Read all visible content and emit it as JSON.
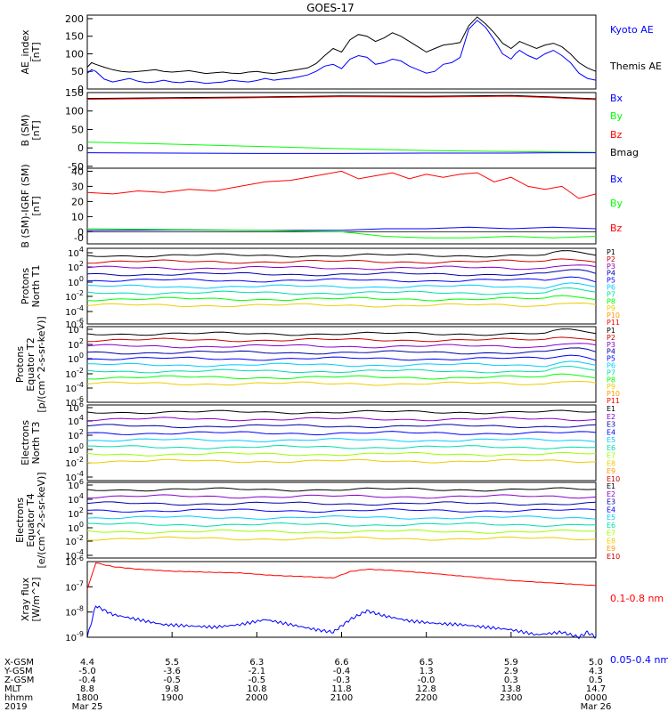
{
  "title": "GOES-17",
  "colors": {
    "black": "#000000",
    "blue": "#0000ff",
    "green": "#00ff00",
    "red": "#ff0000",
    "darkred": "#cc0000",
    "purple": "#8800cc",
    "navy": "#0000aa",
    "cyan": "#00ccff",
    "teal": "#00ddaa",
    "yellow": "#eecc00",
    "orange": "#ff9900",
    "lime": "#99ff00"
  },
  "chart_data": [
    {
      "type": "line",
      "panel": "ae",
      "ylabel": "AE_index [nT]",
      "ylim": [
        0,
        210
      ],
      "yticks": [
        "0",
        "50",
        "100",
        "150",
        "200"
      ],
      "legend": [
        {
          "label": "Kyoto AE",
          "color": "blue"
        },
        {
          "label": "Themis AE",
          "color": "black"
        }
      ],
      "series": [
        {
          "name": "Themis AE",
          "color": "black",
          "x": [
            0,
            0.05,
            0.1,
            0.2,
            0.3,
            0.4,
            0.5,
            0.6,
            0.7,
            0.8,
            0.9,
            1.0,
            1.1,
            1.2,
            1.3,
            1.4,
            1.5,
            1.6,
            1.7,
            1.8,
            1.9,
            2.0,
            2.1,
            2.2,
            2.3,
            2.4,
            2.5,
            2.6,
            2.7,
            2.8,
            2.9,
            3.0,
            3.1,
            3.2,
            3.3,
            3.4,
            3.5,
            3.6,
            3.7,
            3.8,
            3.9,
            4.0,
            4.1,
            4.2,
            4.3,
            4.4,
            4.5,
            4.6,
            4.7,
            4.8,
            4.9,
            5.0,
            5.05,
            5.1,
            5.2,
            5.3,
            5.4,
            5.5,
            5.6,
            5.7,
            5.8,
            5.9,
            6.0
          ],
          "y": [
            62,
            75,
            70,
            62,
            55,
            50,
            48,
            50,
            52,
            55,
            50,
            48,
            50,
            52,
            48,
            44,
            46,
            48,
            45,
            44,
            48,
            50,
            46,
            44,
            48,
            52,
            56,
            60,
            72,
            95,
            115,
            105,
            140,
            155,
            150,
            135,
            145,
            160,
            150,
            135,
            120,
            105,
            115,
            125,
            128,
            132,
            180,
            205,
            185,
            160,
            130,
            115,
            125,
            135,
            125,
            115,
            125,
            130,
            120,
            100,
            75,
            60,
            50
          ]
        },
        {
          "name": "Kyoto AE",
          "color": "blue",
          "x": [
            0,
            0.05,
            0.1,
            0.2,
            0.3,
            0.4,
            0.5,
            0.6,
            0.7,
            0.8,
            0.9,
            1.0,
            1.1,
            1.2,
            1.3,
            1.4,
            1.5,
            1.6,
            1.7,
            1.8,
            1.9,
            2.0,
            2.1,
            2.2,
            2.3,
            2.4,
            2.5,
            2.6,
            2.7,
            2.8,
            2.9,
            3.0,
            3.1,
            3.2,
            3.3,
            3.4,
            3.5,
            3.6,
            3.7,
            3.8,
            3.9,
            4.0,
            4.1,
            4.2,
            4.3,
            4.4,
            4.5,
            4.6,
            4.7,
            4.8,
            4.9,
            5.0,
            5.05,
            5.1,
            5.2,
            5.3,
            5.4,
            5.5,
            5.6,
            5.7,
            5.8,
            5.9,
            6.0
          ],
          "y": [
            45,
            55,
            50,
            28,
            20,
            25,
            30,
            22,
            18,
            20,
            25,
            20,
            18,
            22,
            20,
            16,
            18,
            20,
            25,
            22,
            20,
            24,
            30,
            25,
            28,
            30,
            35,
            40,
            50,
            65,
            70,
            58,
            85,
            95,
            90,
            70,
            75,
            85,
            80,
            65,
            55,
            45,
            50,
            70,
            75,
            90,
            170,
            195,
            175,
            140,
            100,
            85,
            100,
            110,
            95,
            85,
            100,
            110,
            95,
            75,
            45,
            30,
            25
          ]
        }
      ]
    },
    {
      "type": "line",
      "panel": "b_sm",
      "ylabel": "B (SM) [nT]",
      "ylim": [
        -55,
        150
      ],
      "yticks": [
        "-50",
        "0",
        "50",
        "100",
        "150"
      ],
      "legend": [
        {
          "label": "Bx",
          "color": "blue"
        },
        {
          "label": "By",
          "color": "green"
        },
        {
          "label": "Bz",
          "color": "red"
        },
        {
          "label": "Bmag",
          "color": "black"
        }
      ],
      "series": [
        {
          "name": "Bmag",
          "color": "black",
          "x": [
            0,
            1,
            2,
            3,
            4,
            5,
            5.5,
            6
          ],
          "y": [
            134,
            136,
            138,
            141,
            140,
            142,
            138,
            133
          ]
        },
        {
          "name": "Bz",
          "color": "red",
          "x": [
            0,
            1,
            2,
            3,
            4,
            5,
            5.5,
            6
          ],
          "y": [
            132,
            134,
            136,
            139,
            138,
            140,
            136,
            131
          ]
        },
        {
          "name": "By",
          "color": "green",
          "x": [
            0,
            1,
            2,
            3,
            4,
            5,
            5.5,
            6
          ],
          "y": [
            16,
            10,
            4,
            -2,
            -7,
            -10,
            -11,
            -12
          ]
        },
        {
          "name": "Bx",
          "color": "blue",
          "x": [
            0,
            1,
            2,
            3,
            4,
            5,
            5.5,
            6
          ],
          "y": [
            -13,
            -14,
            -15,
            -15,
            -14,
            -14,
            -13,
            -13
          ]
        }
      ]
    },
    {
      "type": "line",
      "panel": "b_igrf",
      "ylabel": "B (SM)-IGRF (SM) [nT]",
      "ylim": [
        -8,
        42
      ],
      "yticks": [
        "-0",
        "0",
        "10",
        "20",
        "30",
        "40"
      ],
      "legend": [
        {
          "label": "Bx",
          "color": "blue"
        },
        {
          "label": "By",
          "color": "green"
        },
        {
          "label": "Bz",
          "color": "red"
        }
      ],
      "series": [
        {
          "name": "Bz",
          "color": "red",
          "x": [
            0,
            0.3,
            0.6,
            0.9,
            1.2,
            1.5,
            1.8,
            2.1,
            2.4,
            2.7,
            3.0,
            3.2,
            3.4,
            3.6,
            3.8,
            4.0,
            4.2,
            4.4,
            4.6,
            4.8,
            5.0,
            5.2,
            5.4,
            5.6,
            5.8,
            6.0
          ],
          "y": [
            26,
            25,
            27,
            26,
            28,
            27,
            30,
            33,
            34,
            37,
            40,
            35,
            37,
            39,
            35,
            38,
            36,
            38,
            39,
            33,
            36,
            30,
            28,
            30,
            22,
            25
          ]
        },
        {
          "name": "Bx",
          "color": "blue",
          "x": [
            0,
            1,
            2,
            3,
            3.5,
            4,
            4.5,
            5,
            5.5,
            6
          ],
          "y": [
            1,
            1.2,
            1,
            1,
            2,
            2,
            3,
            2,
            3,
            2
          ]
        },
        {
          "name": "By",
          "color": "green",
          "x": [
            0,
            1,
            2,
            3,
            3.5,
            4,
            4.5,
            5,
            5.5,
            6
          ],
          "y": [
            2,
            1.5,
            1,
            0,
            -3,
            -4,
            -4,
            -3,
            -4,
            -3
          ]
        }
      ]
    },
    {
      "type": "line",
      "panel": "protons_north",
      "ylabel": "Protons North T1",
      "yscale": "log",
      "yticks": [
        "10^4",
        "10^2",
        "10^0",
        "10^-2",
        "10^-4",
        "10^-6"
      ],
      "channels": [
        "P1",
        "P2",
        "P3",
        "P4",
        "P5",
        "P6",
        "P7",
        "P8",
        "P9",
        "P10",
        "P11"
      ]
    },
    {
      "type": "line",
      "panel": "protons_equator",
      "ylabel": "Protons Equator T2 [p/(cm^2-s-sr-keV)]",
      "yscale": "log",
      "yticks": [
        "10^4",
        "10^2",
        "10^0",
        "10^-2",
        "10^-4",
        "10^-6"
      ],
      "channels": [
        "P1",
        "P2",
        "P3",
        "P4",
        "P5",
        "P6",
        "P7",
        "P8",
        "P9",
        "P10",
        "P11"
      ]
    },
    {
      "type": "line",
      "panel": "electrons_north",
      "ylabel": "Electrons North T3",
      "yscale": "log",
      "yticks": [
        "10^6",
        "10^4",
        "10^2",
        "10^0",
        "10^-2",
        "10^-4"
      ],
      "channels": [
        "E1",
        "E2",
        "E3",
        "E4",
        "E5",
        "E6",
        "E7",
        "E8",
        "E9",
        "E10"
      ]
    },
    {
      "type": "line",
      "panel": "electrons_equator",
      "ylabel": "Electrons Equator T4 [e/(cm^2-s-sr-keV)]",
      "yscale": "log",
      "yticks": [
        "10^6",
        "10^4",
        "10^2",
        "10^0",
        "10^-2",
        "10^-4"
      ],
      "channels": [
        "E1",
        "E2",
        "E3",
        "E4",
        "E5",
        "E6",
        "E7",
        "E8",
        "E9",
        "E10"
      ]
    },
    {
      "type": "line",
      "panel": "xray",
      "ylabel": "Xray flux [W/m^2]",
      "yscale": "log",
      "yticks": [
        "10^-6",
        "10^-7",
        "10^-8",
        "10^-9"
      ],
      "legend": [
        {
          "label": "0.1-0.8 nm",
          "color": "red"
        },
        {
          "label": "0.05-0.4 nm",
          "color": "blue"
        }
      ],
      "series": [
        {
          "name": "0.1-0.8 nm",
          "color": "red",
          "x": [
            0,
            0.1,
            0.3,
            0.6,
            1.0,
            1.4,
            1.8,
            2.2,
            2.6,
            2.9,
            3.1,
            3.3,
            3.6,
            4.0,
            4.5,
            5.0,
            5.5,
            6.0
          ],
          "y": [
            -7.1,
            -6.05,
            -6.2,
            -6.3,
            -6.38,
            -6.42,
            -6.45,
            -6.55,
            -6.6,
            -6.65,
            -6.4,
            -6.3,
            -6.35,
            -6.45,
            -6.6,
            -6.75,
            -6.85,
            -6.95
          ]
        },
        {
          "name": "0.05-0.4 nm",
          "color": "blue",
          "x": [
            0,
            0.1,
            0.3,
            0.6,
            0.9,
            1.2,
            1.5,
            1.8,
            2.1,
            2.4,
            2.7,
            2.9,
            3.1,
            3.3,
            3.5,
            3.8,
            4.1,
            4.4,
            4.7,
            5.0,
            5.3,
            5.6,
            5.8,
            5.9,
            6.0
          ],
          "y": [
            -9.0,
            -7.75,
            -8.1,
            -8.3,
            -8.5,
            -8.55,
            -8.6,
            -8.5,
            -8.3,
            -8.5,
            -8.7,
            -8.8,
            -8.3,
            -7.95,
            -8.15,
            -8.35,
            -8.45,
            -8.5,
            -8.6,
            -8.7,
            -8.9,
            -8.8,
            -9.0,
            -8.8,
            -9.0
          ]
        }
      ]
    }
  ],
  "xaxis": {
    "row_labels": [
      "X-GSM",
      "Y-GSM",
      "Z-GSM",
      "MLT",
      "hhmm",
      "2019"
    ],
    "columns": [
      {
        "values": [
          "4.4",
          "-5.0",
          "-0.4",
          "8.8",
          "1800",
          "Mar 25"
        ]
      },
      {
        "values": [
          "5.5",
          "-3.6",
          "-0.5",
          "9.8",
          "1900",
          ""
        ]
      },
      {
        "values": [
          "6.3",
          "-2.1",
          "-0.5",
          "10.8",
          "2000",
          ""
        ]
      },
      {
        "values": [
          "6.6",
          "-0.4",
          "-0.3",
          "11.8",
          "2100",
          ""
        ]
      },
      {
        "values": [
          "6.5",
          "1.3",
          "-0.0",
          "12.8",
          "2200",
          ""
        ]
      },
      {
        "values": [
          "5.9",
          "2.9",
          "0.3",
          "13.8",
          "2300",
          ""
        ]
      },
      {
        "values": [
          "5.0",
          "4.3",
          "0.5",
          "14.7",
          "0000",
          "Mar 26"
        ]
      }
    ]
  }
}
